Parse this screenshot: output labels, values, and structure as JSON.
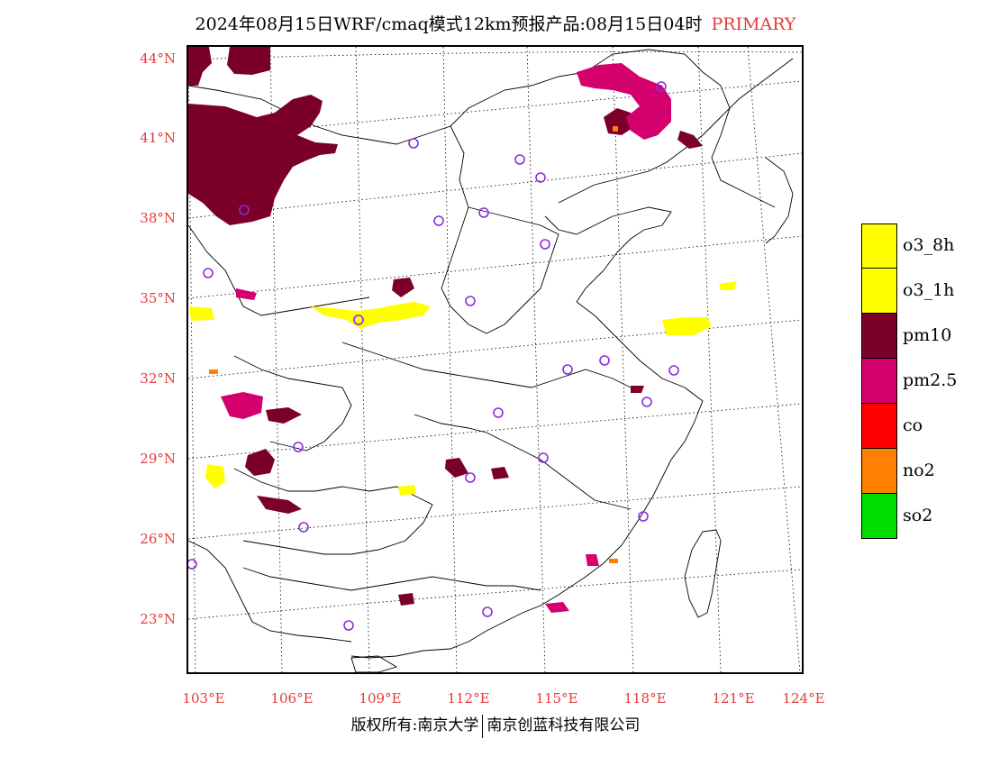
{
  "title": {
    "main": "2024年08月15日WRF/cmaq模式12km预报产品:08月15日04时",
    "tag": "PRIMARY"
  },
  "axes": {
    "lat_labels": [
      "44°N",
      "41°N",
      "38°N",
      "35°N",
      "32°N",
      "29°N",
      "26°N",
      "23°N"
    ],
    "lon_labels": [
      "103°E",
      "106°E",
      "109°E",
      "112°E",
      "115°E",
      "118°E",
      "121°E",
      "124°E"
    ]
  },
  "legend": [
    {
      "label": "o3_8h",
      "color": "#ffff00"
    },
    {
      "label": "o3_1h",
      "color": "#ffff00"
    },
    {
      "label": "pm10",
      "color": "#7a0029"
    },
    {
      "label": "pm2.5",
      "color": "#d4006e"
    },
    {
      "label": "co",
      "color": "#ff0000"
    },
    {
      "label": "no2",
      "color": "#ff7f00"
    },
    {
      "label": "so2",
      "color": "#00e000"
    }
  ],
  "footer": {
    "left": "版权所有:南京大学",
    "right": "南京创蓝科技有限公司"
  }
}
